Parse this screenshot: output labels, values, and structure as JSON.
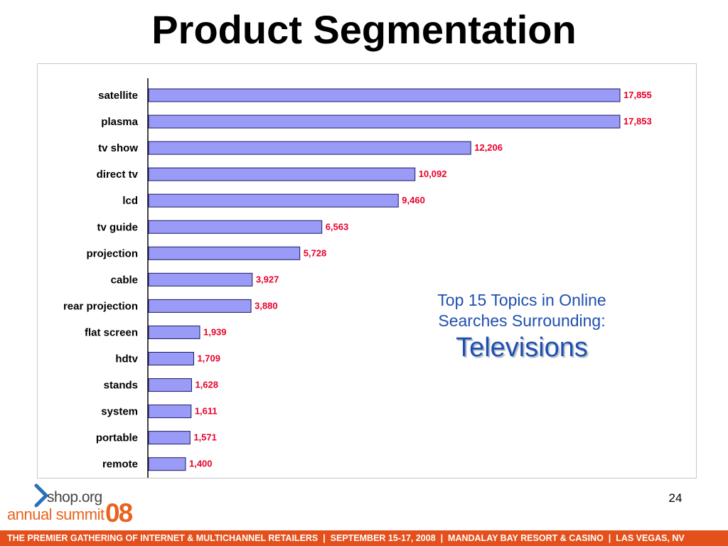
{
  "slide": {
    "title": "Product Segmentation",
    "page_number": "24",
    "footer": "THE PREMIER GATHERING OF INTERNET & MULTICHANNEL RETAILERS  |  SEPTEMBER 15-17, 2008  |  MANDALAY BAY RESORT & CASINO  |  LAS VEGAS, NV"
  },
  "caption": {
    "line1": "Top 15 Topics in Online",
    "line2": "Searches Surrounding:",
    "emphasis": "Televisions"
  },
  "logo": {
    "site": "shop.org",
    "event": "annual summit",
    "year": "08"
  },
  "colors": {
    "bar_fill": "#9a9af7",
    "bar_stroke": "#1a1a66",
    "value_label": "#e8002a",
    "caption": "#1f4fb0",
    "footer": "#e4501c",
    "logo_accent": "#e8641e"
  },
  "chart_data": {
    "type": "bar",
    "orientation": "horizontal",
    "categories": [
      "satellite",
      "plasma",
      "tv show",
      "direct tv",
      "lcd",
      "tv guide",
      "projection",
      "cable",
      "rear projection",
      "flat screen",
      "hdtv",
      "stands",
      "system",
      "portable",
      "remote"
    ],
    "values": [
      17855,
      17853,
      12206,
      10092,
      9460,
      6563,
      5728,
      3927,
      3880,
      1939,
      1709,
      1628,
      1611,
      1571,
      1400
    ],
    "value_labels": [
      "17,855",
      "17,853",
      "12,206",
      "10,092",
      "9,460",
      "6,563",
      "5,728",
      "3,927",
      "3,880",
      "1,939",
      "1,709",
      "1,628",
      "1,611",
      "1,571",
      "1,400"
    ],
    "xlim": [
      0,
      17855
    ],
    "grid": false,
    "legend": "none"
  }
}
